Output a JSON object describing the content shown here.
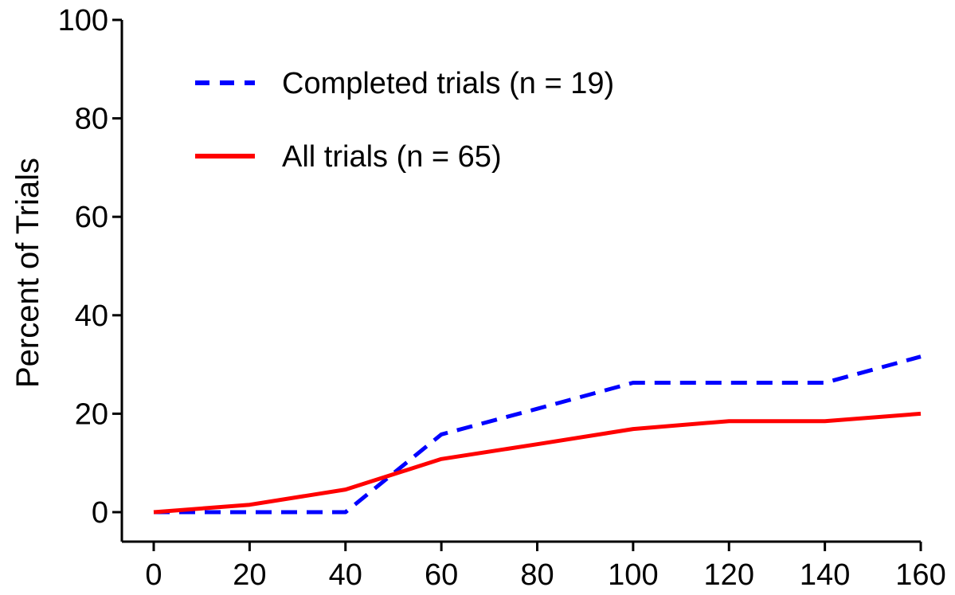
{
  "chart_data": {
    "type": "line",
    "title": "",
    "xlabel": "",
    "ylabel": "Percent of Trials",
    "xlim": [
      0,
      160
    ],
    "ylim": [
      0,
      100
    ],
    "x_ticks": [
      "0",
      "20",
      "40",
      "60",
      "80",
      "100",
      "120",
      "140",
      "160"
    ],
    "y_ticks": [
      "0",
      "20",
      "40",
      "60",
      "80",
      "100"
    ],
    "grid": false,
    "legend_position": "top-left",
    "series": [
      {
        "name": "Completed trials (n = 19)",
        "color": "#0000ff",
        "style": "dashed",
        "x": [
          0,
          20,
          40,
          60,
          80,
          100,
          120,
          140,
          160
        ],
        "y": [
          0,
          0,
          0,
          15.8,
          21,
          26.3,
          26.3,
          26.3,
          31.6
        ]
      },
      {
        "name": "All trials (n = 65)",
        "color": "#ff0000",
        "style": "solid",
        "x": [
          0,
          20,
          40,
          60,
          80,
          100,
          120,
          140,
          160
        ],
        "y": [
          0,
          1.5,
          4.6,
          10.8,
          13.8,
          16.9,
          18.5,
          18.5,
          20
        ]
      }
    ]
  }
}
